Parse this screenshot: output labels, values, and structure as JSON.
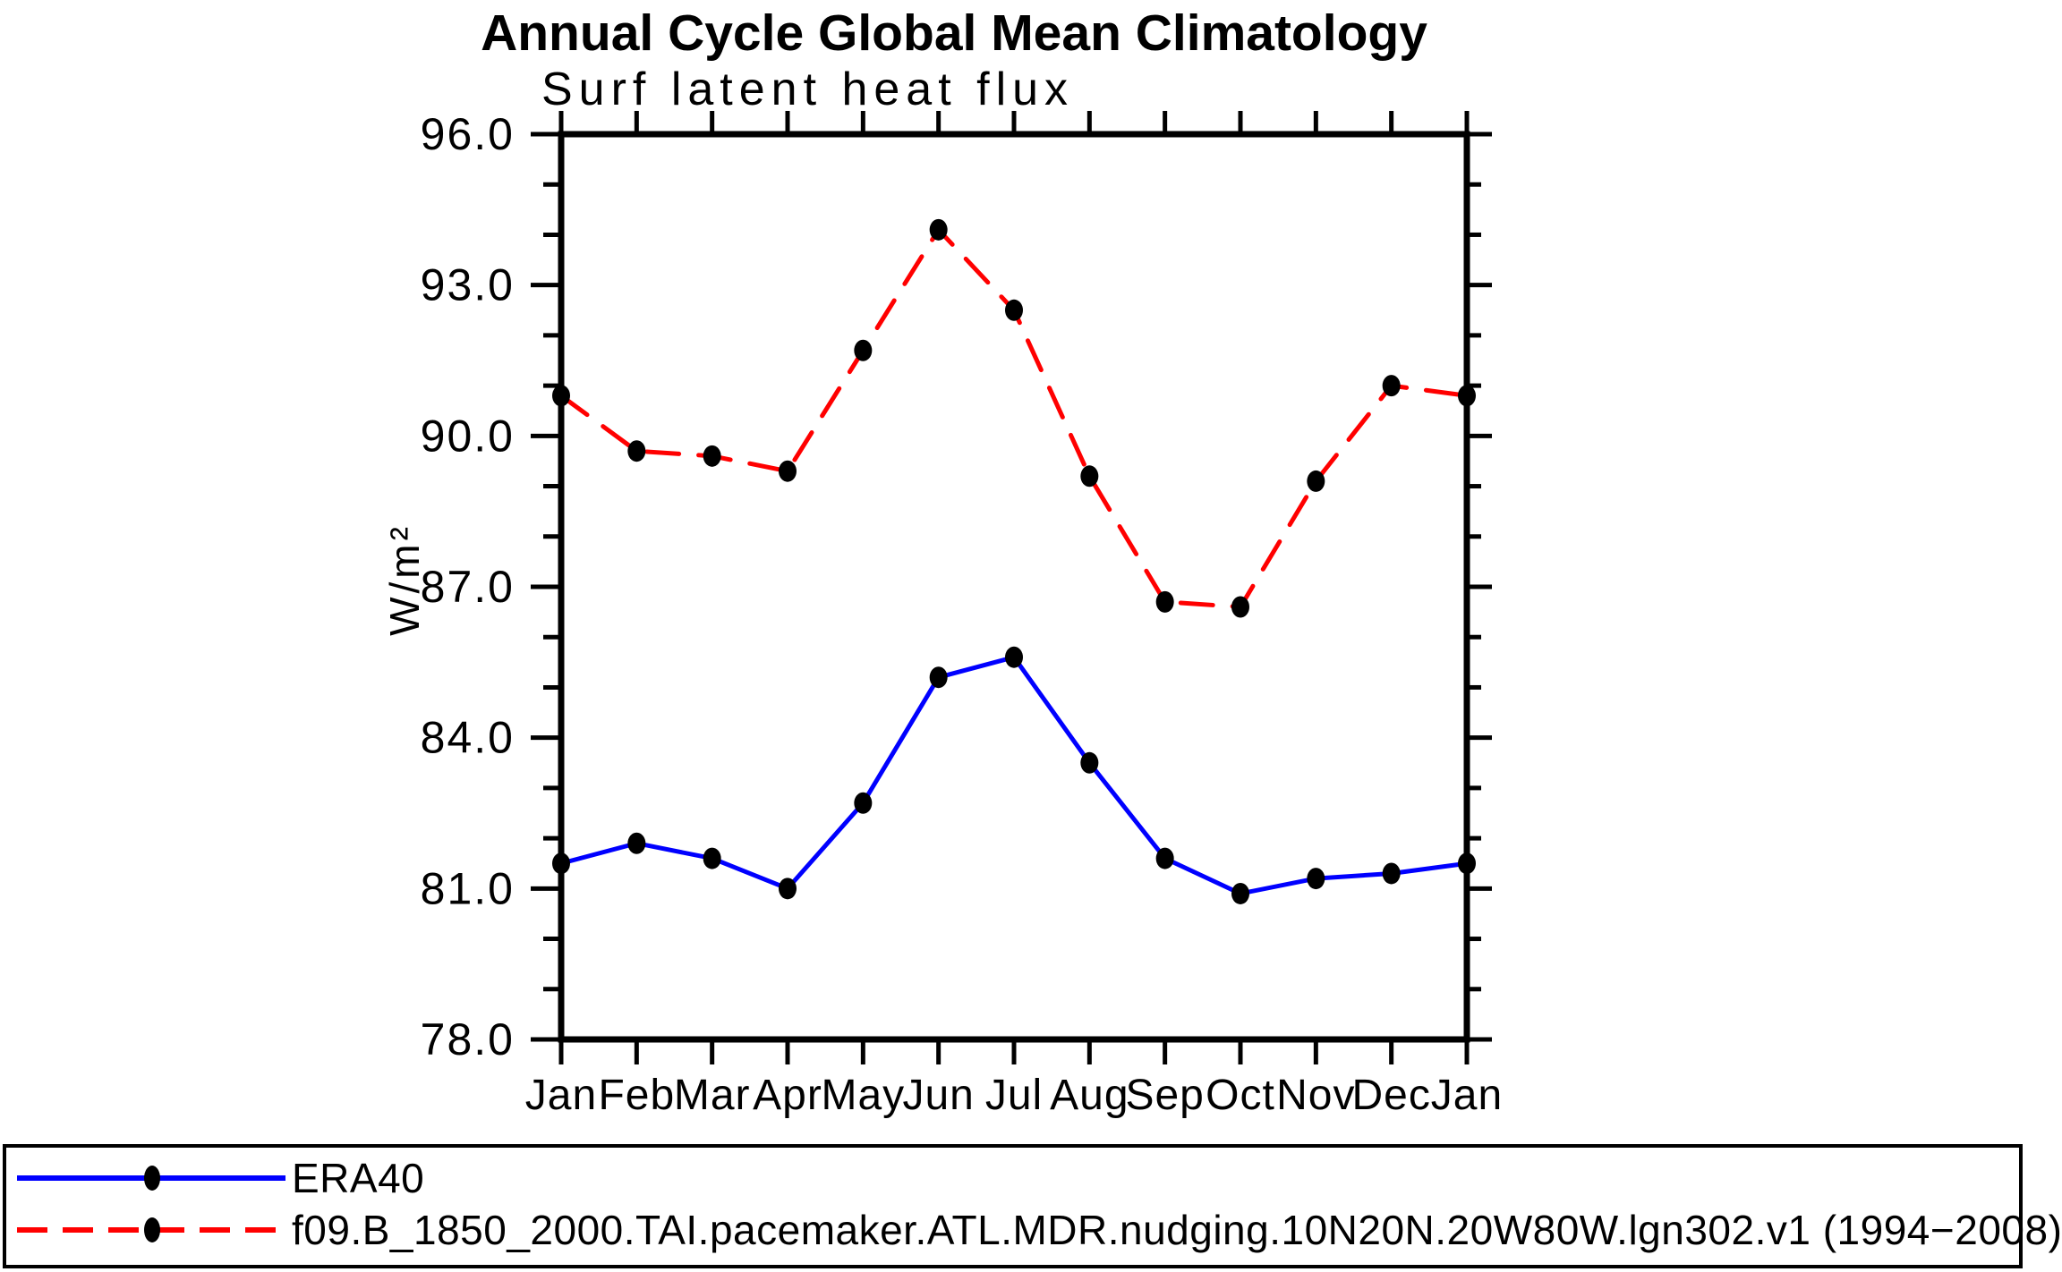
{
  "chart_data": {
    "type": "line",
    "title": "Annual Cycle Global Mean Climatology",
    "subtitle": "Surf latent heat flux",
    "ylabel": "W/m²",
    "xlabel": "",
    "categories": [
      "Jan",
      "Feb",
      "Mar",
      "Apr",
      "May",
      "Jun",
      "Jul",
      "Aug",
      "Sep",
      "Oct",
      "Nov",
      "Dec",
      "Jan"
    ],
    "ylim": [
      78.0,
      96.0
    ],
    "ytick_major_interval": 3.0,
    "ytick_minor_interval": 1.0,
    "ytick_label_format": "one-decimal",
    "grid": false,
    "legend_position": "bottom",
    "marker_color": "#000000",
    "axis_color": "#000000",
    "series": [
      {
        "name": "ERA40",
        "color": "#0000ff",
        "line_style": "solid",
        "marker": "filled-circle",
        "values": [
          81.5,
          81.9,
          81.6,
          81.0,
          82.7,
          85.2,
          85.6,
          83.5,
          81.6,
          80.9,
          81.2,
          81.3,
          81.5
        ]
      },
      {
        "name": "f09.B_1850_2000.TAI.pacemaker.ATL.MDR.nudging.10N20N.20W80W.lgn302.v1 (1994−2008)",
        "color": "#ff0000",
        "line_style": "dashed",
        "marker": "filled-circle",
        "values": [
          90.8,
          89.7,
          89.6,
          89.3,
          91.7,
          94.1,
          92.5,
          89.2,
          86.7,
          86.6,
          89.1,
          91.0,
          90.8
        ]
      }
    ]
  }
}
